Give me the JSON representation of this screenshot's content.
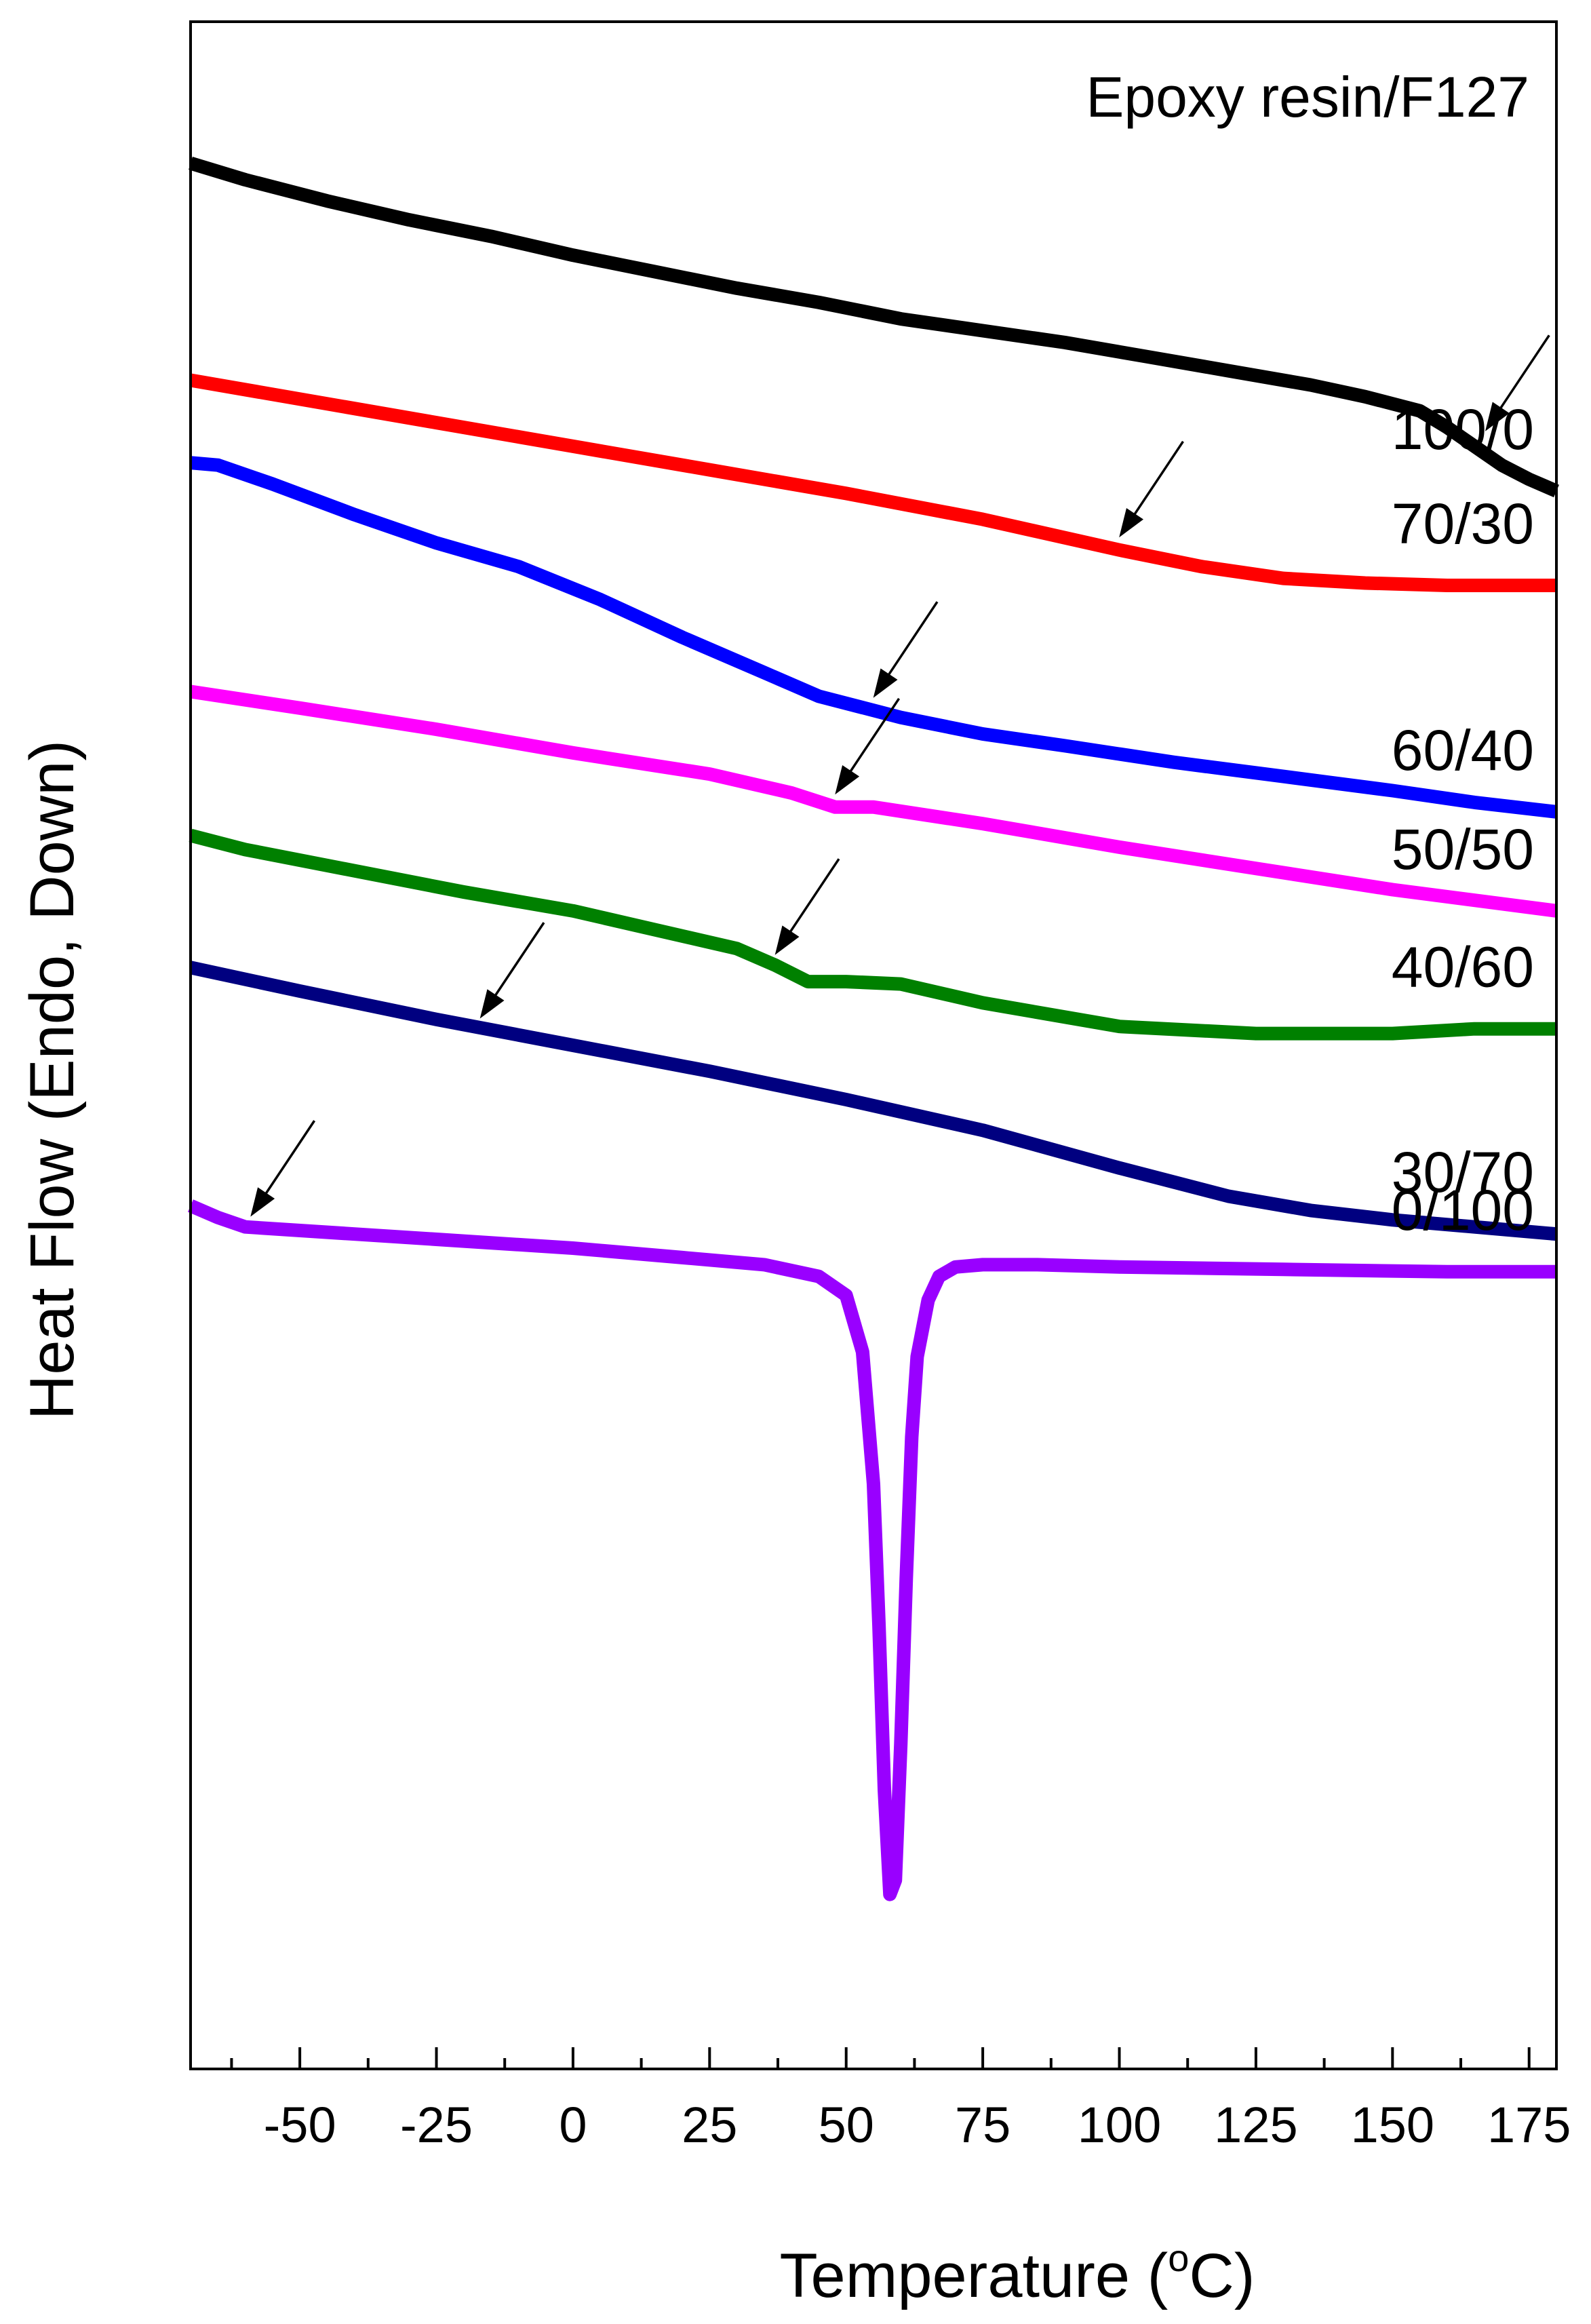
{
  "chart_data": {
    "type": "line",
    "title": "Epoxy resin/F127",
    "xlabel": "Temperature (",
    "xlabel_degree": "o",
    "xlabel_unit": "C)",
    "ylabel": "Heat Flow (Endo, Down)",
    "xlim": [
      -70,
      180
    ],
    "ylim": [
      -40.4,
      3
    ],
    "x_ticks": [
      -50,
      -25,
      0,
      25,
      50,
      75,
      100,
      125,
      150,
      175
    ],
    "x_tick_labels": [
      "-50",
      "-25",
      "0",
      "25",
      "50",
      "75",
      "100",
      "125",
      "150",
      "175"
    ],
    "y_ticks_visible": false,
    "grid": false,
    "legend": "inline labels at right",
    "series": [
      {
        "name": "100/0",
        "color": "#000000",
        "x": [
          -70,
          -60,
          -45,
          -30,
          -15,
          0,
          15,
          30,
          45,
          60,
          75,
          90,
          105,
          120,
          135,
          145,
          155,
          160,
          165,
          170,
          175,
          180
        ],
        "y": [
          0,
          -0.35,
          -0.8,
          -1.2,
          -1.55,
          -1.95,
          -2.3,
          -2.65,
          -2.95,
          -3.3,
          -3.55,
          -3.8,
          -4.1,
          -4.4,
          -4.7,
          -4.95,
          -5.25,
          -5.6,
          -6.0,
          -6.4,
          -6.7,
          -6.95
        ],
        "arrow_at": [
          166,
          -5.85
        ]
      },
      {
        "name": "70/30",
        "color": "#ff0000",
        "x": [
          -70,
          -50,
          -25,
          0,
          25,
          50,
          75,
          100,
          115,
          130,
          145,
          160,
          180
        ],
        "y": [
          -4.6,
          -5.0,
          -5.5,
          -6.0,
          -6.5,
          -7.0,
          -7.55,
          -8.2,
          -8.55,
          -8.8,
          -8.9,
          -8.95,
          -8.95
        ],
        "arrow_at": [
          99,
          -8.1
        ]
      },
      {
        "name": "60/40",
        "color": "#0000ff",
        "x": [
          -70,
          -65,
          -55,
          -40,
          -25,
          -10,
          5,
          20,
          35,
          45,
          60,
          75,
          90,
          110,
          130,
          150,
          165,
          180
        ],
        "y": [
          -6.35,
          -6.4,
          -6.8,
          -7.45,
          -8.05,
          -8.55,
          -9.25,
          -10.05,
          -10.8,
          -11.3,
          -11.75,
          -12.1,
          -12.35,
          -12.7,
          -13.0,
          -13.3,
          -13.55,
          -13.75
        ],
        "arrow_at": [
          54,
          -11.5
        ]
      },
      {
        "name": "50/50",
        "color": "#ff00ff",
        "x": [
          -70,
          -50,
          -25,
          0,
          25,
          40,
          48,
          55,
          75,
          100,
          125,
          150,
          180
        ],
        "y": [
          -11.2,
          -11.55,
          -12.0,
          -12.5,
          -12.95,
          -13.35,
          -13.65,
          -13.65,
          -14.0,
          -14.5,
          -14.95,
          -15.4,
          -15.85
        ],
        "arrow_at": [
          47,
          -13.55
        ]
      },
      {
        "name": "40/60",
        "color": "#008000",
        "x": [
          -70,
          -60,
          -40,
          -20,
          0,
          15,
          30,
          37,
          43,
          50,
          60,
          75,
          100,
          125,
          150,
          165,
          180
        ],
        "y": [
          -14.25,
          -14.55,
          -15.0,
          -15.45,
          -15.85,
          -16.25,
          -16.65,
          -17.0,
          -17.35,
          -17.35,
          -17.4,
          -17.8,
          -18.3,
          -18.45,
          -18.45,
          -18.35,
          -18.35
        ],
        "arrow_at": [
          36,
          -16.95
        ]
      },
      {
        "name": "30/70",
        "color": "#000080",
        "x": [
          -70,
          -50,
          -25,
          0,
          25,
          50,
          75,
          100,
          120,
          135,
          150,
          165,
          180
        ],
        "y": [
          -17.05,
          -17.55,
          -18.15,
          -18.7,
          -19.25,
          -19.85,
          -20.5,
          -21.3,
          -21.9,
          -22.2,
          -22.4,
          -22.55,
          -22.7
        ],
        "arrow_at": [
          -18,
          -18.3
        ]
      },
      {
        "name": "0/100",
        "color": "#9900ff",
        "x": [
          -70,
          -65,
          -60,
          -40,
          -20,
          0,
          20,
          35,
          45,
          50,
          53,
          55,
          56,
          57,
          58,
          59,
          60,
          61,
          62,
          63,
          65,
          67,
          70,
          75,
          85,
          100,
          130,
          160,
          180
        ],
        "y": [
          -22.1,
          -22.35,
          -22.55,
          -22.7,
          -22.85,
          -23.0,
          -23.2,
          -23.35,
          -23.6,
          -24.0,
          -25.2,
          -28.0,
          -31.0,
          -34.5,
          -36.7,
          -36.4,
          -33.5,
          -30.0,
          -27.0,
          -25.3,
          -24.1,
          -23.6,
          -23.4,
          -23.35,
          -23.35,
          -23.4,
          -23.45,
          -23.5,
          -23.5
        ],
        "arrow_at": [
          -60,
          -22.5
        ]
      }
    ]
  }
}
